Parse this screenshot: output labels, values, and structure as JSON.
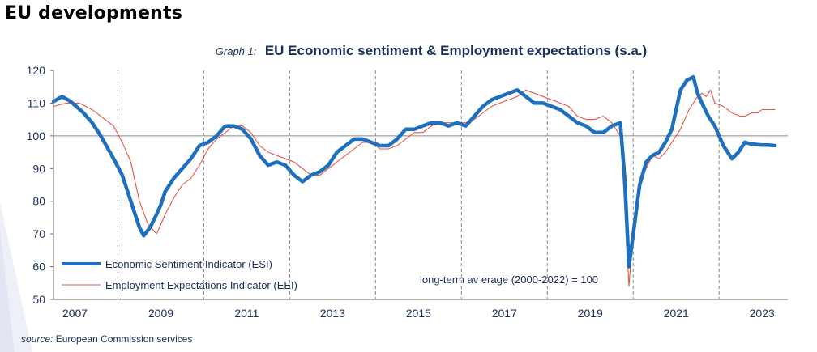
{
  "page": {
    "section_title": "EU developments"
  },
  "graph": {
    "prefix": "Graph 1:",
    "title": "EU Economic sentiment & Employment expectations (s.a.)"
  },
  "source": {
    "label": "source:",
    "text": "European Commission services"
  },
  "colors": {
    "esi": "#1f6fbf",
    "eei": "#e8564c",
    "axis": "#666666",
    "text": "#1a2f5a",
    "deco": "#eef0f7"
  },
  "chart_data": {
    "type": "line",
    "title": "EU Economic sentiment & Employment expectations (s.a.)",
    "xlabel": "",
    "ylabel": "",
    "xlim": [
      2006.5,
      2023.6
    ],
    "ylim": [
      50,
      120
    ],
    "y_ticks": [
      50,
      60,
      70,
      80,
      90,
      100,
      110,
      120
    ],
    "y_tick_labels": [
      "50",
      "60",
      "70",
      "80",
      "90",
      "100",
      "110",
      "120"
    ],
    "x_ticks": [
      2007,
      2009,
      2011,
      2013,
      2015,
      2017,
      2019,
      2021,
      2023
    ],
    "x_tick_labels": [
      "2007",
      "2009",
      "2011",
      "2013",
      "2015",
      "2017",
      "2019",
      "2021",
      "2023"
    ],
    "year_dividers": [
      2008,
      2010,
      2012,
      2014,
      2016,
      2018,
      2020,
      2022
    ],
    "reference_line": 100,
    "annotation": "long-term av erage (2000-2022) = 100",
    "legend_position": "bottom-left",
    "series": [
      {
        "name": "Economic Sentiment Indicator (ESI)",
        "color": "#1f6fbf",
        "x": [
          2006.5,
          2006.7,
          2006.9,
          2007.2,
          2007.4,
          2007.6,
          2007.9,
          2008.1,
          2008.3,
          2008.5,
          2008.6,
          2008.75,
          2008.9,
          2009.0,
          2009.1,
          2009.3,
          2009.5,
          2009.7,
          2009.9,
          2010.1,
          2010.3,
          2010.5,
          2010.7,
          2010.9,
          2011.1,
          2011.3,
          2011.5,
          2011.7,
          2011.9,
          2012.1,
          2012.3,
          2012.5,
          2012.7,
          2012.9,
          2013.1,
          2013.3,
          2013.5,
          2013.7,
          2013.9,
          2014.1,
          2014.3,
          2014.5,
          2014.7,
          2014.9,
          2015.1,
          2015.3,
          2015.5,
          2015.7,
          2015.9,
          2016.1,
          2016.3,
          2016.5,
          2016.7,
          2016.9,
          2017.1,
          2017.3,
          2017.5,
          2017.7,
          2017.9,
          2018.1,
          2018.3,
          2018.5,
          2018.7,
          2018.9,
          2019.1,
          2019.3,
          2019.5,
          2019.7,
          2019.8,
          2019.9,
          2020.0,
          2020.15,
          2020.3,
          2020.45,
          2020.6,
          2020.75,
          2020.9,
          2021.0,
          2021.1,
          2021.25,
          2021.4,
          2021.5,
          2021.6,
          2021.75,
          2021.9,
          2022.1,
          2022.3,
          2022.45,
          2022.6,
          2022.75,
          2022.9,
          2023.0,
          2023.15,
          2023.3
        ],
        "y": [
          110.5,
          112,
          110.5,
          107,
          104,
          100,
          93,
          88,
          80,
          72,
          69.5,
          72,
          76,
          79,
          83,
          87,
          90,
          93,
          97,
          98,
          100,
          103,
          103,
          102,
          99,
          94,
          91,
          92,
          91,
          88,
          86,
          88,
          89,
          91,
          95,
          97,
          99,
          99,
          98,
          97,
          97,
          99,
          102,
          102,
          103,
          104,
          104,
          103,
          104,
          103,
          106,
          109,
          111,
          112,
          113,
          114,
          112,
          110,
          110,
          109,
          108,
          106,
          104,
          103,
          101,
          101,
          103,
          104,
          87,
          60,
          70,
          85,
          92,
          94,
          95,
          98,
          102,
          108,
          114,
          117,
          118,
          113,
          110,
          106,
          103,
          97,
          93,
          95,
          98,
          97.5,
          97.3,
          97.2,
          97.2,
          97
        ]
      },
      {
        "name": "Employment Expectations Indicator (EEI)",
        "color": "#e8564c",
        "x": [
          2006.5,
          2006.8,
          2007.1,
          2007.4,
          2007.6,
          2007.9,
          2008.1,
          2008.3,
          2008.5,
          2008.7,
          2008.9,
          2009.1,
          2009.3,
          2009.5,
          2009.7,
          2009.9,
          2010.1,
          2010.3,
          2010.5,
          2010.7,
          2010.9,
          2011.1,
          2011.3,
          2011.5,
          2011.7,
          2011.9,
          2012.1,
          2012.3,
          2012.5,
          2012.7,
          2012.9,
          2013.1,
          2013.3,
          2013.5,
          2013.7,
          2013.9,
          2014.1,
          2014.3,
          2014.5,
          2014.7,
          2014.9,
          2015.1,
          2015.3,
          2015.5,
          2015.7,
          2015.9,
          2016.1,
          2016.3,
          2016.5,
          2016.7,
          2016.9,
          2017.1,
          2017.3,
          2017.5,
          2017.7,
          2017.9,
          2018.1,
          2018.3,
          2018.5,
          2018.7,
          2018.9,
          2019.1,
          2019.3,
          2019.5,
          2019.7,
          2019.8,
          2019.9,
          2020.0,
          2020.15,
          2020.3,
          2020.45,
          2020.6,
          2020.75,
          2020.9,
          2021.1,
          2021.3,
          2021.5,
          2021.6,
          2021.7,
          2021.8,
          2021.9,
          2022.1,
          2022.3,
          2022.5,
          2022.6,
          2022.75,
          2022.9,
          2023.0,
          2023.15,
          2023.3
        ],
        "y": [
          109,
          110,
          110,
          108,
          106,
          103,
          98,
          92,
          80,
          73,
          70,
          76,
          81,
          85,
          87,
          91,
          96,
          99,
          101,
          103,
          103,
          101,
          97,
          95,
          94,
          93,
          92,
          90,
          88,
          88,
          90,
          92,
          94,
          96,
          98,
          98,
          96,
          96,
          97,
          99,
          101,
          101,
          103,
          104,
          104,
          104,
          104,
          105,
          107,
          109,
          110,
          111,
          112,
          114,
          113,
          112,
          111,
          110,
          109,
          106,
          105,
          105,
          106,
          104,
          100,
          80,
          54,
          72,
          85,
          90,
          94,
          93,
          95,
          98,
          102,
          108,
          112,
          113,
          112,
          114,
          110,
          109,
          107,
          106,
          106,
          107,
          107,
          108,
          108,
          108
        ]
      }
    ]
  }
}
